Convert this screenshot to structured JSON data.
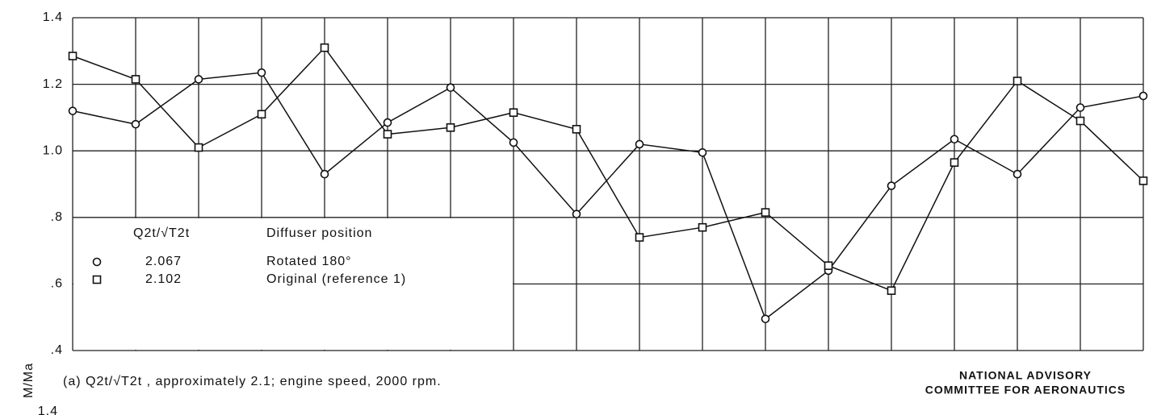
{
  "chart_data": {
    "type": "line",
    "y_label": "M/Ma",
    "categories": [
      null,
      null,
      null,
      null,
      null,
      null,
      null,
      null,
      null,
      null,
      null,
      null,
      null,
      null,
      null,
      null,
      null,
      null
    ],
    "series": [
      {
        "name": "Rotated 180°",
        "q_value": "2.067",
        "marker": "circle",
        "color": "#111111",
        "values": [
          1.12,
          1.08,
          1.215,
          1.235,
          0.93,
          1.085,
          1.19,
          1.025,
          0.81,
          1.02,
          0.995,
          0.495,
          0.64,
          0.895,
          1.035,
          0.93,
          1.13,
          1.165
        ]
      },
      {
        "name": "Original (reference 1)",
        "q_value": "2.102",
        "marker": "square",
        "color": "#111111",
        "values": [
          1.285,
          1.215,
          1.01,
          1.11,
          1.31,
          1.05,
          1.07,
          1.115,
          1.065,
          0.74,
          0.77,
          0.815,
          0.655,
          0.58,
          0.965,
          1.21,
          1.09,
          0.91
        ]
      }
    ],
    "legend_headers": [
      "Q2t/√T2t",
      "Diffuser position"
    ],
    "ylim": [
      0.4,
      1.4
    ],
    "yticks": [
      {
        "value": 0.4,
        "label": ".4"
      },
      {
        "value": 0.6,
        "label": ".6"
      },
      {
        "value": 0.8,
        "label": ".8"
      },
      {
        "value": 1.0,
        "label": "1.0"
      },
      {
        "value": 1.2,
        "label": "1.2"
      },
      {
        "value": 1.4,
        "label": "1.4"
      }
    ],
    "grid": true,
    "caption": "(a)  Q2t/√T2t , approximately 2.1; engine speed, 2000 rpm.",
    "credit": [
      "NATIONAL ADVISORY",
      "COMMITTEE FOR AERONAUTICS"
    ],
    "next_panel_tick": "1.4"
  }
}
